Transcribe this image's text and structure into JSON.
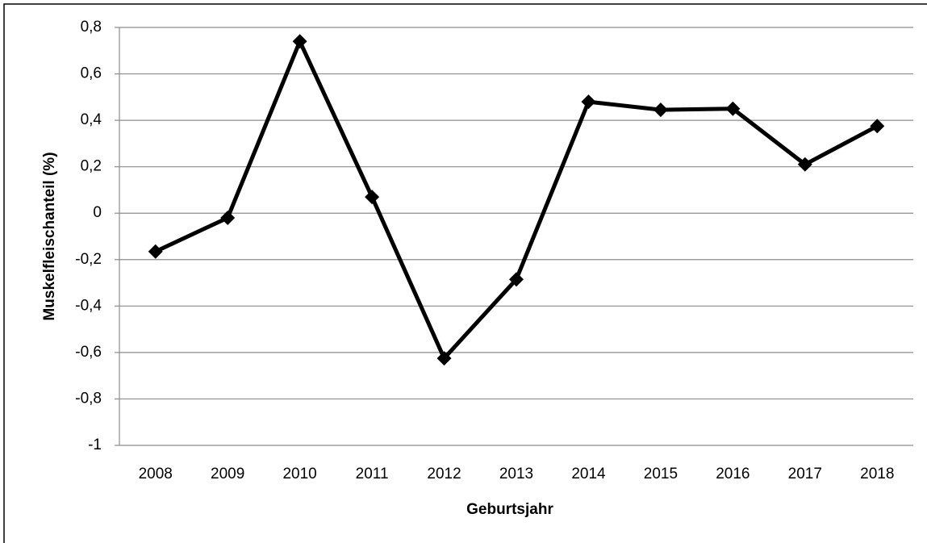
{
  "chart_data": {
    "type": "line",
    "x_label": "Geburtsjahr",
    "y_label": "Muskelfleischanteil (%)",
    "categories": [
      "2008",
      "2009",
      "2010",
      "2011",
      "2012",
      "2013",
      "2014",
      "2015",
      "2016",
      "2017",
      "2018"
    ],
    "values": [
      -0.165,
      -0.02,
      0.74,
      0.07,
      -0.625,
      -0.285,
      0.48,
      0.445,
      0.45,
      0.21,
      0.375
    ],
    "color": "#000000",
    "ylim": [
      -1,
      0.8
    ],
    "yticks": [
      -1,
      {
        "value": -0.8,
        "label": "-0,8"
      },
      {
        "value": -0.6,
        "label": "-0,6"
      },
      {
        "value": -0.4,
        "label": "-0,4"
      },
      {
        "value": -0.2,
        "label": "-0,2"
      },
      0,
      {
        "value": 0.2,
        "label": "0,2"
      },
      {
        "value": 0.4,
        "label": "0,4"
      },
      {
        "value": 0.6,
        "label": "0,6"
      },
      {
        "value": 0.8,
        "label": "0,8"
      }
    ],
    "grid": true
  }
}
